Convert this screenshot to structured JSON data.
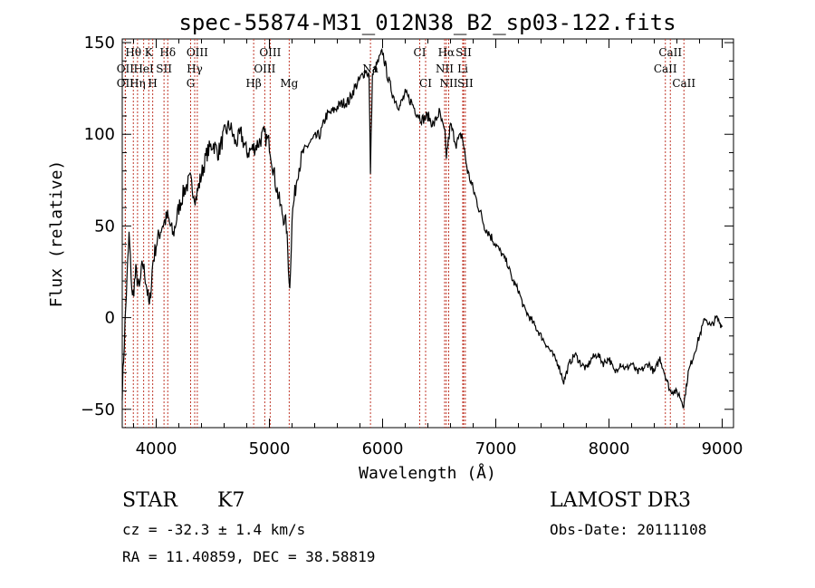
{
  "chart_data": {
    "type": "line",
    "title": "spec-55874-M31_012N38_B2_sp03-122.fits",
    "xlabel": "Wavelength (Å)",
    "ylabel": "Flux (relative)",
    "xlim": [
      3700,
      9100
    ],
    "ylim": [
      -60,
      152
    ],
    "xticks": [
      "4000",
      "5000",
      "6000",
      "7000",
      "8000",
      "9000"
    ],
    "yticks": [
      "-50",
      "0",
      "50",
      "100",
      "150"
    ],
    "series": [
      {
        "x": [
          3700,
          3730,
          3760,
          3790,
          3820,
          3850,
          3880,
          3910,
          3940,
          3970,
          4000,
          4050,
          4100,
          4150,
          4200,
          4250,
          4300,
          4350,
          4400,
          4450,
          4500,
          4550,
          4600,
          4650,
          4700,
          4750,
          4800,
          4850,
          4900,
          4950,
          5000,
          5050,
          5100,
          5150,
          5180,
          5200,
          5250,
          5300,
          5350,
          5400,
          5450,
          5500,
          5550,
          5600,
          5650,
          5700,
          5750,
          5800,
          5850,
          5880,
          5893,
          5910,
          5950,
          6000,
          6050,
          6100,
          6150,
          6200,
          6250,
          6300,
          6350,
          6400,
          6450,
          6500,
          6550,
          6563,
          6600,
          6650,
          6700,
          6750,
          6800,
          6850,
          6900,
          6950,
          7000,
          7050,
          7100,
          7150,
          7200,
          7250,
          7300,
          7350,
          7400,
          7450,
          7500,
          7550,
          7600,
          7650,
          7700,
          7750,
          7800,
          7850,
          7900,
          7950,
          8000,
          8050,
          8100,
          8150,
          8200,
          8250,
          8300,
          8350,
          8400,
          8450,
          8500,
          8540,
          8580,
          8620,
          8660,
          8700,
          8750,
          8800,
          8850,
          8900,
          8950,
          9000
        ],
        "values": [
          -40,
          5,
          45,
          10,
          25,
          15,
          30,
          20,
          5,
          30,
          40,
          50,
          55,
          45,
          60,
          70,
          75,
          65,
          78,
          90,
          95,
          90,
          100,
          105,
          95,
          100,
          90,
          92,
          95,
          100,
          95,
          75,
          60,
          50,
          15,
          55,
          80,
          90,
          95,
          98,
          100,
          110,
          112,
          115,
          117,
          118,
          125,
          130,
          135,
          132,
          80,
          132,
          138,
          145,
          130,
          120,
          115,
          122,
          118,
          112,
          108,
          110,
          105,
          112,
          100,
          88,
          105,
          95,
          100,
          80,
          70,
          60,
          50,
          45,
          40,
          35,
          30,
          20,
          15,
          5,
          0,
          -5,
          -10,
          -15,
          -20,
          -25,
          -35,
          -25,
          -20,
          -25,
          -28,
          -22,
          -20,
          -25,
          -22,
          -30,
          -25,
          -28,
          -25,
          -30,
          -28,
          -25,
          -30,
          -22,
          -32,
          -40,
          -40,
          -42,
          -48,
          -30,
          -20,
          -10,
          0,
          -5,
          0,
          -5
        ]
      }
    ],
    "lines": [
      {
        "label": "Hθ",
        "x": 3798,
        "row": 0
      },
      {
        "label": "K",
        "x": 3934,
        "row": 0
      },
      {
        "label": "Hδ",
        "x": 4102,
        "row": 0
      },
      {
        "label": "OIII",
        "x": 4363,
        "row": 0
      },
      {
        "label": "OIII",
        "x": 5007,
        "row": 0
      },
      {
        "label": "CI",
        "x": 6328,
        "row": 0
      },
      {
        "label": "Hα",
        "x": 6563,
        "row": 0
      },
      {
        "label": "SII",
        "x": 6716,
        "row": 0
      },
      {
        "label": "CaII",
        "x": 8542,
        "row": 0
      },
      {
        "label": "OII",
        "x": 3727,
        "row": 1
      },
      {
        "label": "HeI",
        "x": 3889,
        "row": 1
      },
      {
        "label": "SII",
        "x": 4069,
        "row": 1
      },
      {
        "label": "Hγ",
        "x": 4340,
        "row": 1
      },
      {
        "label": "OIII",
        "x": 4959,
        "row": 1
      },
      {
        "label": "Na",
        "x": 5893,
        "row": 1
      },
      {
        "label": "NII",
        "x": 6548,
        "row": 1
      },
      {
        "label": "Li",
        "x": 6708,
        "row": 1
      },
      {
        "label": "CaII",
        "x": 8498,
        "row": 1
      },
      {
        "label": "OII",
        "x": 3727,
        "row": 2
      },
      {
        "label": "Hη",
        "x": 3835,
        "row": 2
      },
      {
        "label": "H",
        "x": 3969,
        "row": 2
      },
      {
        "label": "G",
        "x": 4304,
        "row": 2
      },
      {
        "label": "Hβ",
        "x": 4861,
        "row": 2
      },
      {
        "label": "Mg",
        "x": 5175,
        "row": 2
      },
      {
        "label": "CI",
        "x": 6380,
        "row": 2
      },
      {
        "label": "NII",
        "x": 6584,
        "row": 2
      },
      {
        "label": "SII",
        "x": 6731,
        "row": 2
      },
      {
        "label": "CaII",
        "x": 8662,
        "row": 2
      }
    ],
    "info": {
      "type": "STAR",
      "subclass": "K7",
      "cz": "cz = -32.3 ± 1.4 km/s",
      "radec": "RA =  11.40859, DEC =  38.58819",
      "survey": "LAMOST DR3",
      "obsdate": "Obs-Date: 20111108"
    }
  }
}
